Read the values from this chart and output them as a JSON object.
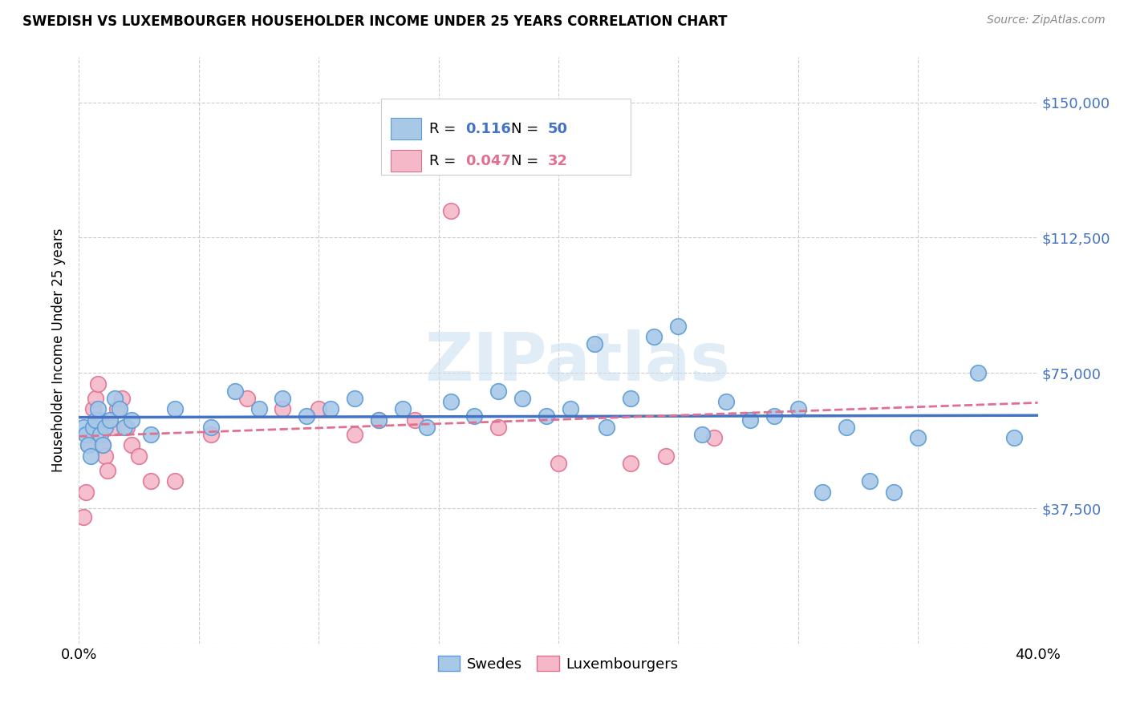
{
  "title": "SWEDISH VS LUXEMBOURGER HOUSEHOLDER INCOME UNDER 25 YEARS CORRELATION CHART",
  "source": "Source: ZipAtlas.com",
  "ylabel": "Householder Income Under 25 years",
  "xlim": [
    0.0,
    0.4
  ],
  "ylim": [
    0,
    162500
  ],
  "yticks": [
    0,
    37500,
    75000,
    112500,
    150000
  ],
  "ytick_labels": [
    "",
    "$37,500",
    "$75,000",
    "$112,500",
    "$150,000"
  ],
  "xticks": [
    0.0,
    0.05,
    0.1,
    0.15,
    0.2,
    0.25,
    0.3,
    0.35,
    0.4
  ],
  "xtick_labels": [
    "0.0%",
    "",
    "",
    "",
    "",
    "",
    "",
    "",
    "40.0%"
  ],
  "swedes_color": "#a8c8e8",
  "swedes_edge_color": "#5b9bd5",
  "luxembourgers_color": "#f4b8c8",
  "luxembourgers_edge_color": "#e07090",
  "swedes_line_color": "#4472c4",
  "luxembourgers_line_color": "#e07090",
  "legend_blue": "#4472c4",
  "legend_pink": "#e07090",
  "watermark": "ZIPatlas",
  "R_swedes": "0.116",
  "N_swedes": "50",
  "R_luxembourgers": "0.047",
  "N_luxembourgers": "32",
  "swedes_x": [
    0.002,
    0.003,
    0.004,
    0.005,
    0.006,
    0.007,
    0.008,
    0.009,
    0.01,
    0.011,
    0.013,
    0.015,
    0.017,
    0.019,
    0.022,
    0.03,
    0.04,
    0.055,
    0.065,
    0.075,
    0.085,
    0.095,
    0.105,
    0.115,
    0.125,
    0.135,
    0.145,
    0.155,
    0.165,
    0.175,
    0.185,
    0.195,
    0.205,
    0.215,
    0.22,
    0.23,
    0.24,
    0.25,
    0.26,
    0.27,
    0.28,
    0.29,
    0.3,
    0.31,
    0.32,
    0.33,
    0.34,
    0.35,
    0.375,
    0.39
  ],
  "swedes_y": [
    60000,
    58000,
    55000,
    52000,
    60000,
    62000,
    65000,
    58000,
    55000,
    60000,
    62000,
    68000,
    65000,
    60000,
    62000,
    58000,
    65000,
    60000,
    70000,
    65000,
    68000,
    63000,
    65000,
    68000,
    62000,
    65000,
    60000,
    67000,
    63000,
    70000,
    68000,
    63000,
    65000,
    83000,
    60000,
    68000,
    85000,
    88000,
    58000,
    67000,
    62000,
    63000,
    65000,
    42000,
    60000,
    45000,
    42000,
    57000,
    75000,
    57000
  ],
  "luxembourgers_x": [
    0.002,
    0.003,
    0.004,
    0.005,
    0.006,
    0.007,
    0.008,
    0.009,
    0.01,
    0.011,
    0.012,
    0.014,
    0.016,
    0.018,
    0.02,
    0.022,
    0.025,
    0.03,
    0.04,
    0.055,
    0.07,
    0.085,
    0.1,
    0.115,
    0.125,
    0.14,
    0.155,
    0.175,
    0.2,
    0.23,
    0.245,
    0.265
  ],
  "luxembourgers_y": [
    35000,
    42000,
    55000,
    58000,
    65000,
    68000,
    72000,
    62000,
    55000,
    52000,
    48000,
    60000,
    65000,
    68000,
    60000,
    55000,
    52000,
    45000,
    45000,
    58000,
    68000,
    65000,
    65000,
    58000,
    62000,
    62000,
    120000,
    60000,
    50000,
    50000,
    52000,
    57000
  ]
}
